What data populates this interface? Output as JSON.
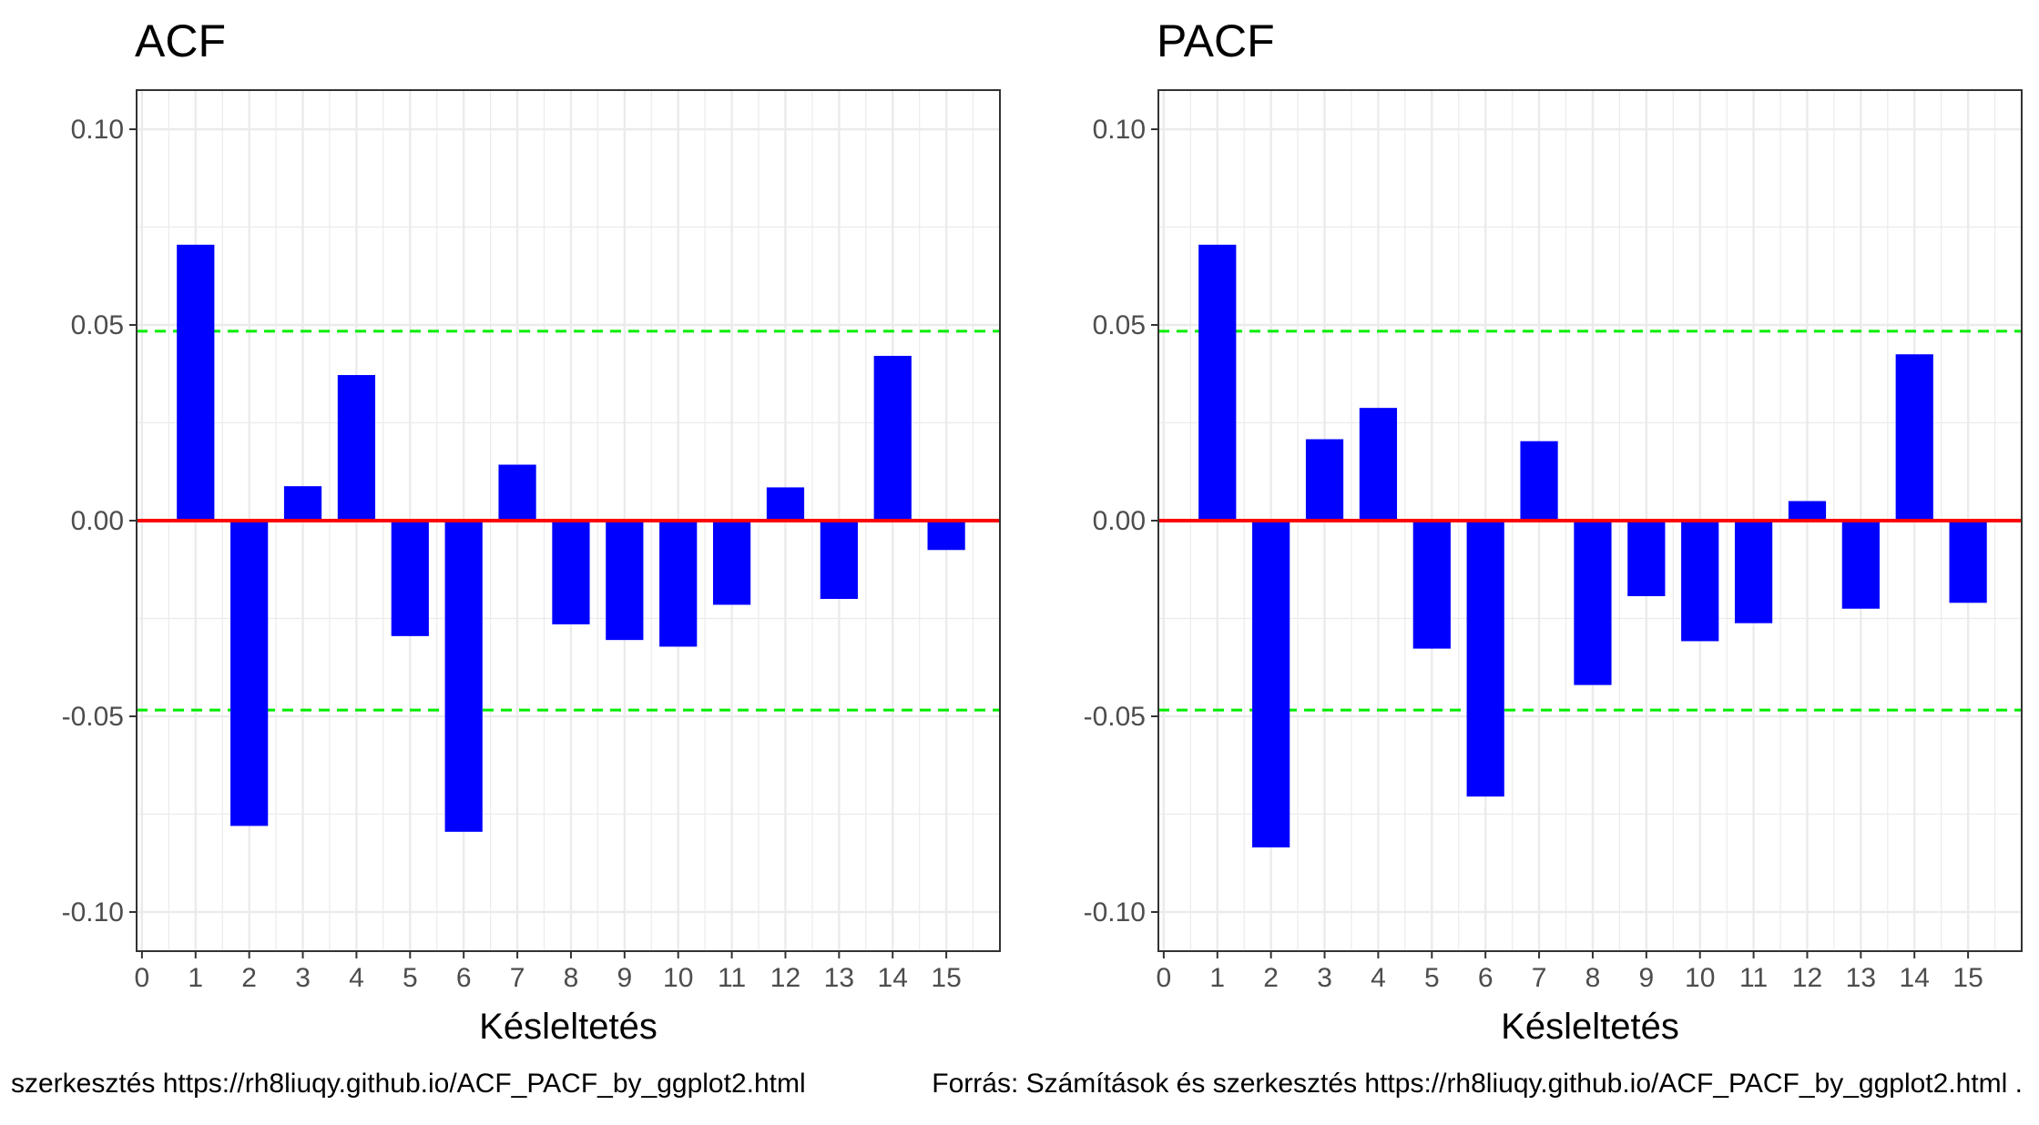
{
  "caption_left": "szerkesztés https://rh8liuqy.github.io/ACF_PACF_by_ggplot2.html",
  "caption_right": "Forrás: Számítások és szerkesztés https://rh8liuqy.github.io/ACF_PACF_by_ggplot2.html .",
  "colors": {
    "bar": "#0000ff",
    "zero_line": "#ff0000",
    "ci_line": "#00ee00",
    "panel_border": "#333333",
    "grid": "#ebebeb"
  },
  "chart_data": [
    {
      "type": "bar",
      "title": "ACF",
      "xlabel": "Késleltetés",
      "ylabel": "",
      "x": [
        1,
        2,
        3,
        4,
        5,
        6,
        7,
        8,
        9,
        10,
        11,
        12,
        13,
        14,
        15
      ],
      "values": [
        0.0705,
        -0.078,
        0.0088,
        0.0372,
        -0.0295,
        -0.0795,
        0.0143,
        -0.0265,
        -0.0305,
        -0.0322,
        -0.0215,
        0.0085,
        -0.02,
        0.0421,
        -0.0075
      ],
      "xticks": [
        "0",
        "1",
        "2",
        "3",
        "4",
        "5",
        "6",
        "7",
        "8",
        "9",
        "10",
        "11",
        "12",
        "13",
        "14",
        "15"
      ],
      "yticks": [
        "0.10",
        "0.05",
        "0.00",
        "-0.05",
        "-0.10"
      ],
      "ytick_values": [
        0.1,
        0.05,
        0.0,
        -0.05,
        -0.1
      ],
      "xlim": [
        -0.1,
        16.0
      ],
      "ylim": [
        -0.11,
        0.11
      ],
      "confidence_bounds": [
        0.0484,
        -0.0484
      ],
      "grid": true
    },
    {
      "type": "bar",
      "title": "PACF",
      "xlabel": "Késleltetés",
      "ylabel": "",
      "x": [
        1,
        2,
        3,
        4,
        5,
        6,
        7,
        8,
        9,
        10,
        11,
        12,
        13,
        14,
        15
      ],
      "values": [
        0.0705,
        -0.0835,
        0.0208,
        0.0288,
        -0.0327,
        -0.0705,
        0.0203,
        -0.042,
        -0.0193,
        -0.0308,
        -0.0262,
        0.005,
        -0.0225,
        0.0425,
        -0.021
      ],
      "xticks": [
        "0",
        "1",
        "2",
        "3",
        "4",
        "5",
        "6",
        "7",
        "8",
        "9",
        "10",
        "11",
        "12",
        "13",
        "14",
        "15"
      ],
      "yticks": [
        "0.10",
        "0.05",
        "0.00",
        "-0.05",
        "-0.10"
      ],
      "ytick_values": [
        0.1,
        0.05,
        0.0,
        -0.05,
        -0.1
      ],
      "xlim": [
        -0.1,
        16.0
      ],
      "ylim": [
        -0.11,
        0.11
      ],
      "confidence_bounds": [
        0.0484,
        -0.0484
      ],
      "grid": true
    }
  ]
}
